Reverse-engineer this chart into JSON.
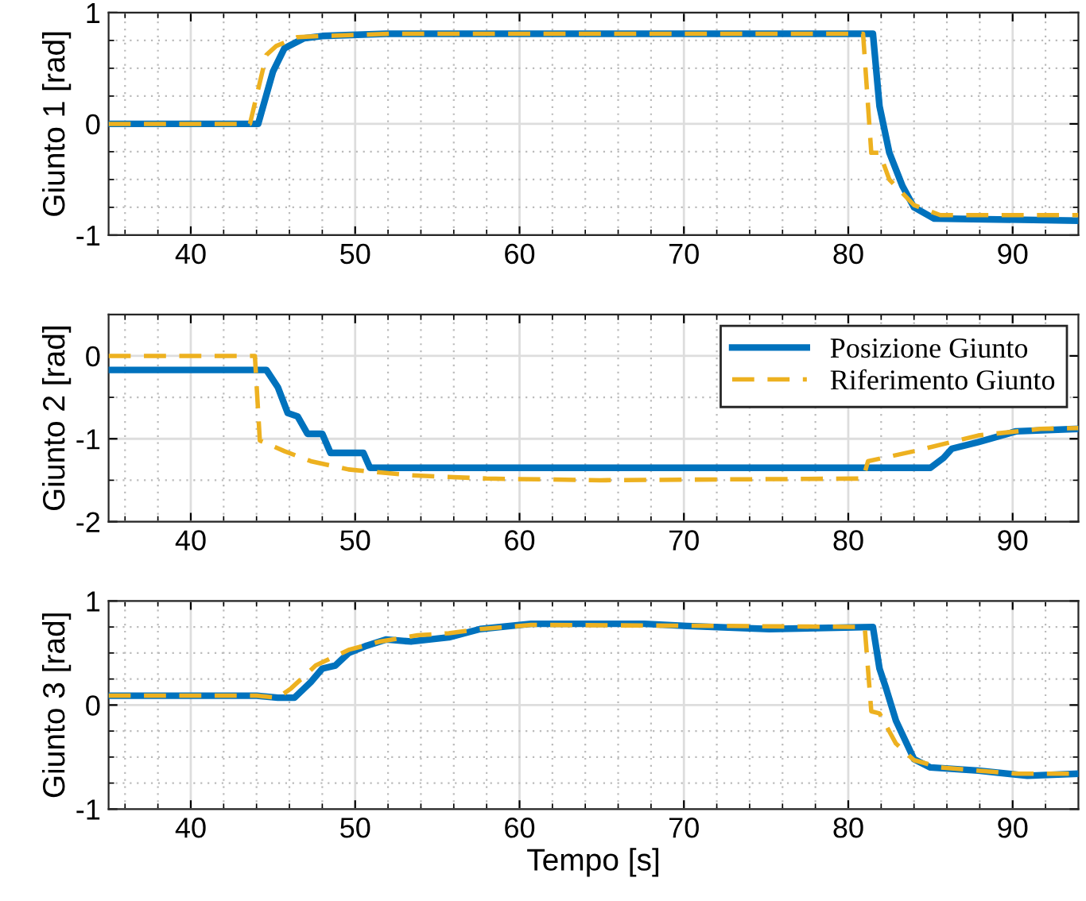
{
  "chart_data": [
    {
      "type": "line",
      "ylabel": "Giunto 1 [rad]",
      "xlim": [
        35,
        94
      ],
      "ylim": [
        -1,
        1
      ],
      "grid": true,
      "xticks": [
        {
          "value": 36,
          "label": null
        },
        {
          "value": 38,
          "label": null
        },
        40,
        {
          "value": 42,
          "label": null
        },
        {
          "value": 44,
          "label": null
        },
        {
          "value": 46,
          "label": null
        },
        {
          "value": 48,
          "label": null
        },
        50,
        {
          "value": 52,
          "label": null
        },
        {
          "value": 54,
          "label": null
        },
        {
          "value": 56,
          "label": null
        },
        {
          "value": 58,
          "label": null
        },
        60,
        {
          "value": 62,
          "label": null
        },
        {
          "value": 64,
          "label": null
        },
        {
          "value": 66,
          "label": null
        },
        {
          "value": 68,
          "label": null
        },
        70,
        {
          "value": 72,
          "label": null
        },
        {
          "value": 74,
          "label": null
        },
        {
          "value": 76,
          "label": null
        },
        {
          "value": 78,
          "label": null
        },
        80,
        {
          "value": 82,
          "label": null
        },
        {
          "value": 84,
          "label": null
        },
        {
          "value": 86,
          "label": null
        },
        {
          "value": 88,
          "label": null
        },
        90,
        {
          "value": 92,
          "label": null
        }
      ],
      "yticks": [
        -1,
        {
          "value": -0.75,
          "label": null
        },
        {
          "value": -0.5,
          "label": null
        },
        {
          "value": -0.25,
          "label": null
        },
        0,
        {
          "value": 0.25,
          "label": null
        },
        {
          "value": 0.5,
          "label": null
        },
        {
          "value": 0.75,
          "label": null
        },
        1
      ],
      "series": [
        {
          "color": "#0072bd",
          "line_style": "solid",
          "x": [
            35,
            44.1,
            45,
            45.7,
            46.9,
            48,
            51.9,
            81.5,
            81.9,
            82.5,
            83.3,
            84,
            85.2,
            94
          ],
          "values": [
            0,
            0,
            0.47,
            0.68,
            0.77,
            0.79,
            0.81,
            0.81,
            0.16,
            -0.26,
            -0.56,
            -0.75,
            -0.85,
            -0.87
          ]
        },
        {
          "color": "#edb120",
          "line_style": "dashed",
          "x": [
            35,
            43.6,
            44.6,
            45.2,
            46.5,
            48,
            52.2,
            80.9,
            81.4,
            81.9,
            82.5,
            84,
            85.6,
            94
          ],
          "values": [
            0,
            0,
            0.62,
            0.7,
            0.78,
            0.79,
            0.81,
            0.81,
            -0.26,
            -0.26,
            -0.5,
            -0.73,
            -0.82,
            -0.82
          ]
        }
      ]
    },
    {
      "type": "line",
      "ylabel": "Giunto 2 [rad]",
      "xlim": [
        35,
        94
      ],
      "ylim": [
        -2,
        0.5
      ],
      "grid": true,
      "legend": "top right",
      "xticks": [
        {
          "value": 36,
          "label": null
        },
        {
          "value": 38,
          "label": null
        },
        40,
        {
          "value": 42,
          "label": null
        },
        {
          "value": 44,
          "label": null
        },
        {
          "value": 46,
          "label": null
        },
        {
          "value": 48,
          "label": null
        },
        50,
        {
          "value": 52,
          "label": null
        },
        {
          "value": 54,
          "label": null
        },
        {
          "value": 56,
          "label": null
        },
        {
          "value": 58,
          "label": null
        },
        60,
        {
          "value": 62,
          "label": null
        },
        {
          "value": 64,
          "label": null
        },
        {
          "value": 66,
          "label": null
        },
        {
          "value": 68,
          "label": null
        },
        70,
        {
          "value": 72,
          "label": null
        },
        {
          "value": 74,
          "label": null
        },
        {
          "value": 76,
          "label": null
        },
        {
          "value": 78,
          "label": null
        },
        80,
        {
          "value": 82,
          "label": null
        },
        {
          "value": 84,
          "label": null
        },
        {
          "value": 86,
          "label": null
        },
        {
          "value": 88,
          "label": null
        },
        90,
        {
          "value": 92,
          "label": null
        }
      ],
      "yticks": [
        -2,
        {
          "value": -1.5,
          "label": null
        },
        -1,
        {
          "value": -0.5,
          "label": null
        },
        0
      ],
      "series": [
        {
          "name": "Posizione Giunto",
          "color": "#0072bd",
          "line_style": "solid",
          "x": [
            35,
            44.6,
            45.3,
            45.9,
            46.5,
            47.1,
            48,
            48.5,
            50.5,
            50.9,
            85,
            85.8,
            86.3,
            87.9,
            90.2,
            94
          ],
          "values": [
            -0.17,
            -0.17,
            -0.38,
            -0.69,
            -0.73,
            -0.94,
            -0.94,
            -1.17,
            -1.17,
            -1.35,
            -1.35,
            -1.23,
            -1.12,
            -1.04,
            -0.91,
            -0.88
          ]
        },
        {
          "name": "Riferimento Giunto",
          "color": "#edb120",
          "line_style": "dashed",
          "x": [
            35,
            43.9,
            44.2,
            45.7,
            47.3,
            49.6,
            53.4,
            58,
            64.9,
            72.5,
            80.9,
            81.2,
            84,
            87.9,
            91.7,
            94
          ],
          "values": [
            0,
            0,
            -1.02,
            -1.15,
            -1.27,
            -1.37,
            -1.44,
            -1.48,
            -1.5,
            -1.49,
            -1.48,
            -1.27,
            -1.15,
            -0.96,
            -0.88,
            -0.87
          ]
        }
      ]
    },
    {
      "type": "line",
      "ylabel": "Giunto 3 [rad]",
      "xlabel": "Tempo [s]",
      "xlim": [
        35,
        94
      ],
      "ylim": [
        -1,
        1
      ],
      "grid": true,
      "xticks": [
        {
          "value": 36,
          "label": null
        },
        {
          "value": 38,
          "label": null
        },
        40,
        {
          "value": 42,
          "label": null
        },
        {
          "value": 44,
          "label": null
        },
        {
          "value": 46,
          "label": null
        },
        {
          "value": 48,
          "label": null
        },
        50,
        {
          "value": 52,
          "label": null
        },
        {
          "value": 54,
          "label": null
        },
        {
          "value": 56,
          "label": null
        },
        {
          "value": 58,
          "label": null
        },
        60,
        {
          "value": 62,
          "label": null
        },
        {
          "value": 64,
          "label": null
        },
        {
          "value": 66,
          "label": null
        },
        {
          "value": 68,
          "label": null
        },
        70,
        {
          "value": 72,
          "label": null
        },
        {
          "value": 74,
          "label": null
        },
        {
          "value": 76,
          "label": null
        },
        {
          "value": 78,
          "label": null
        },
        80,
        {
          "value": 82,
          "label": null
        },
        {
          "value": 84,
          "label": null
        },
        {
          "value": 86,
          "label": null
        },
        {
          "value": 88,
          "label": null
        },
        90,
        {
          "value": 92,
          "label": null
        }
      ],
      "yticks": [
        -1,
        {
          "value": -0.75,
          "label": null
        },
        {
          "value": -0.5,
          "label": null
        },
        {
          "value": -0.25,
          "label": null
        },
        0,
        {
          "value": 0.25,
          "label": null
        },
        {
          "value": 0.5,
          "label": null
        },
        {
          "value": 0.75,
          "label": null
        },
        1
      ],
      "series": [
        {
          "color": "#0072bd",
          "line_style": "solid",
          "x": [
            35,
            44,
            45.3,
            46.3,
            47.3,
            48,
            48.8,
            49.6,
            50.7,
            51.9,
            53.4,
            55.7,
            57.6,
            60.7,
            67.6,
            70.2,
            75.2,
            81.5,
            81.9,
            82.3,
            82.9,
            84,
            85,
            87.9,
            90.9,
            94
          ],
          "values": [
            0.09,
            0.09,
            0.07,
            0.07,
            0.22,
            0.35,
            0.38,
            0.5,
            0.57,
            0.63,
            0.61,
            0.65,
            0.73,
            0.78,
            0.78,
            0.76,
            0.73,
            0.75,
            0.35,
            0.16,
            -0.15,
            -0.52,
            -0.6,
            -0.63,
            -0.68,
            -0.66
          ]
        },
        {
          "color": "#edb120",
          "line_style": "dashed",
          "x": [
            35,
            44,
            45.3,
            46.1,
            47.6,
            49.6,
            51.5,
            53.8,
            55.7,
            57.6,
            60.7,
            72.5,
            81,
            81.4,
            81.9,
            82.9,
            84,
            85.6,
            90.2,
            94
          ],
          "values": [
            0.09,
            0.09,
            0.07,
            0.16,
            0.38,
            0.53,
            0.61,
            0.67,
            0.69,
            0.73,
            0.77,
            0.76,
            0.75,
            -0.06,
            -0.08,
            -0.37,
            -0.53,
            -0.6,
            -0.66,
            -0.66
          ]
        }
      ]
    }
  ]
}
